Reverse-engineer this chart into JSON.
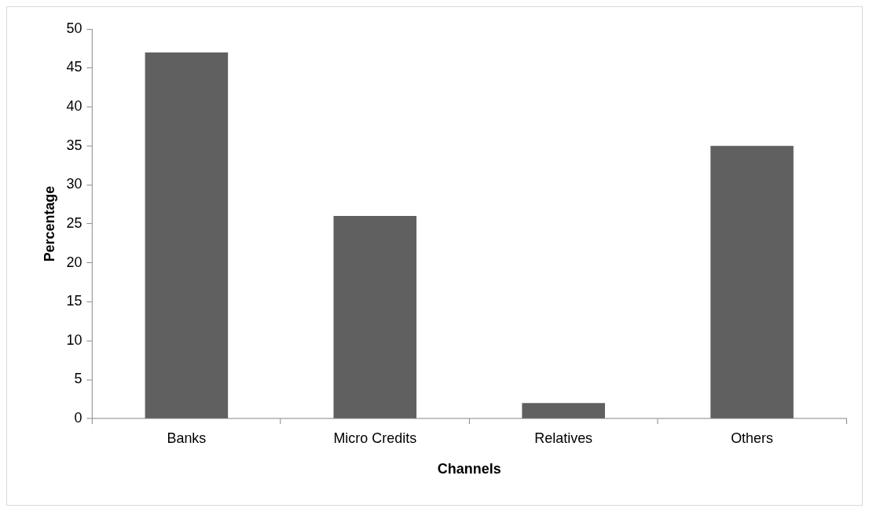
{
  "chart_data": {
    "type": "bar",
    "xlabel": "Channels",
    "ylabel": "Percentage",
    "categories": [
      "Banks",
      "Micro Credits",
      "Relatives",
      "Others"
    ],
    "values": [
      47,
      26,
      2,
      35
    ],
    "color": "#606060",
    "ylim": [
      0,
      50
    ],
    "yticks": [
      0,
      5,
      10,
      15,
      20,
      25,
      30,
      35,
      40,
      45,
      50
    ],
    "legend": false
  }
}
